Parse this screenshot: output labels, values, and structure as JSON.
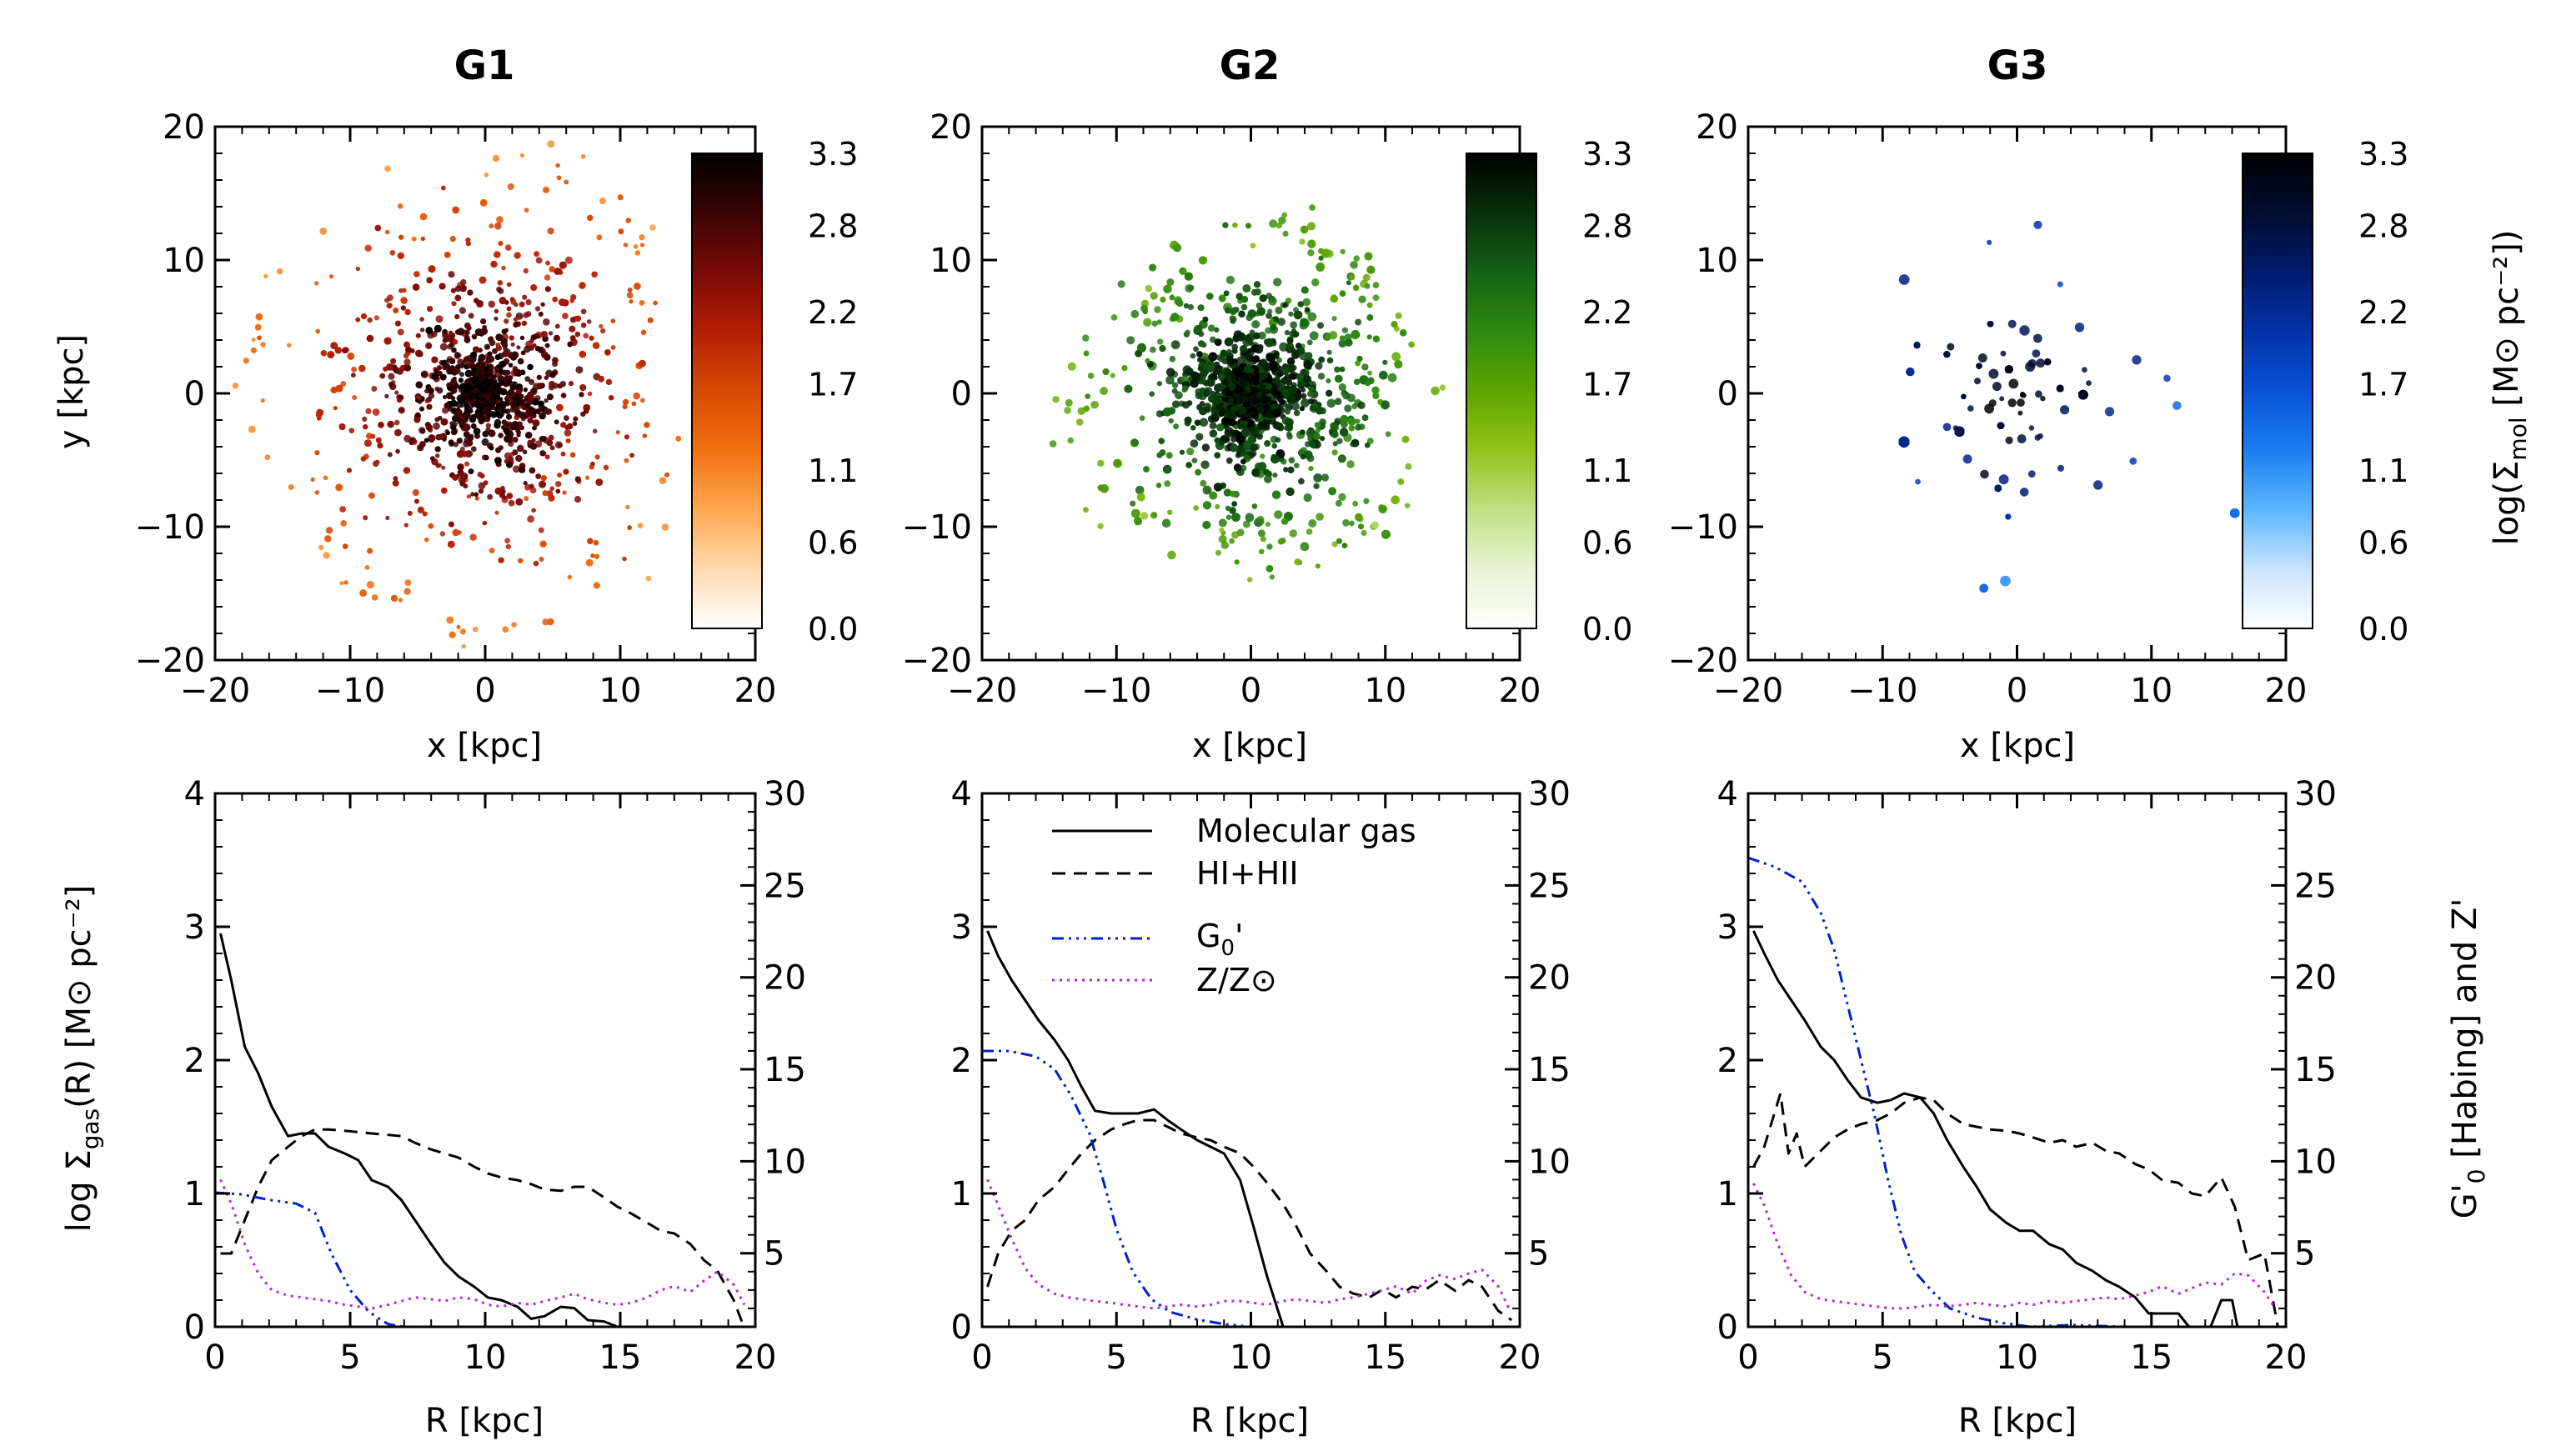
{
  "colors": {
    "molecular": "#000000",
    "hi_hii": "#000000",
    "g0": "#0022c8",
    "z": "#b02cd0",
    "cb_G1": [
      "#ffffff",
      "#ffd9ae",
      "#ffa850",
      "#f27010",
      "#d84a04",
      "#b41e06",
      "#7a0a08",
      "#3a0404",
      "#000000"
    ],
    "cb_G2": [
      "#ffffff",
      "#e9f3d2",
      "#c2df84",
      "#93c21a",
      "#5ea500",
      "#2e8a10",
      "#166014",
      "#08300a",
      "#000000"
    ],
    "cb_G3": [
      "#ffffff",
      "#c8e4ff",
      "#5cb6ff",
      "#1a7ef0",
      "#0a52d8",
      "#0432a8",
      "#021b6c",
      "#000d30",
      "#000000"
    ]
  },
  "chart_data": [
    {
      "type": "scatter",
      "panel": "G1",
      "title": "G1",
      "xlabel": "x [kpc]",
      "ylabel": "y [kpc]",
      "xlim": [
        -20,
        20
      ],
      "ylim": [
        -20,
        20
      ],
      "xticks": [
        "−20",
        "−10",
        "0",
        "10",
        "20"
      ],
      "yticks": [
        "−20",
        "−10",
        "0",
        "10",
        "20"
      ],
      "colorbar": {
        "range": [
          0.0,
          3.3
        ],
        "ticks": [
          "0.0",
          "0.6",
          "1.1",
          "1.7",
          "2.2",
          "2.8",
          "3.3"
        ]
      }
    },
    {
      "type": "scatter",
      "panel": "G2",
      "title": "G2",
      "xlabel": "x [kpc]",
      "ylabel": "",
      "xlim": [
        -20,
        20
      ],
      "ylim": [
        -20,
        20
      ],
      "xticks": [
        "−20",
        "−10",
        "0",
        "10",
        "20"
      ],
      "yticks": [
        "−20",
        "−10",
        "0",
        "10",
        "20"
      ],
      "colorbar": {
        "range": [
          0.0,
          3.3
        ],
        "ticks": [
          "0.0",
          "0.6",
          "1.1",
          "1.7",
          "2.2",
          "2.8",
          "3.3"
        ]
      }
    },
    {
      "type": "scatter",
      "panel": "G3",
      "title": "G3",
      "xlabel": "x [kpc]",
      "ylabel": "",
      "xlim": [
        -20,
        20
      ],
      "ylim": [
        -20,
        20
      ],
      "xticks": [
        "−20",
        "−10",
        "0",
        "10",
        "20"
      ],
      "yticks": [
        "−20",
        "−10",
        "0",
        "10",
        "20"
      ],
      "colorbar": {
        "range": [
          0.0,
          3.3
        ],
        "ticks": [
          "0.0",
          "0.6",
          "1.1",
          "1.7",
          "2.2",
          "2.8",
          "3.3"
        ],
        "label_main": "log(Σ",
        "label_sub": "mol",
        "label_tail": " [M⊙ pc⁻²])"
      }
    },
    {
      "type": "line",
      "panel": "G1",
      "xlabel": "R [kpc]",
      "xlim": [
        0,
        20
      ],
      "ylim": [
        0,
        4
      ],
      "y2lim": [
        1,
        30
      ],
      "xticks": [
        "0",
        "5",
        "10",
        "15",
        "20"
      ],
      "yticks": [
        "0",
        "1",
        "2",
        "3",
        "4"
      ],
      "y2ticks": [
        "5",
        "10",
        "15",
        "20",
        "25",
        "30"
      ],
      "ylabel_main": "log Σ",
      "ylabel_sub": "gas",
      "ylabel_tail": "(R) [M⊙ pc⁻²]",
      "series": [
        {
          "name": "Molecular gas",
          "axis": "left",
          "x": [
            0.2,
            0.6,
            1.1,
            1.6,
            2.1,
            2.7,
            3.2,
            3.7,
            4.2,
            4.8,
            5.3,
            5.8,
            6.4,
            6.9,
            7.4,
            8.0,
            8.5,
            9.0,
            9.6,
            10.1,
            10.6,
            11.2,
            11.7,
            12.2,
            12.8,
            13.3,
            13.8,
            14.4,
            14.9
          ],
          "y": [
            2.95,
            2.6,
            2.1,
            1.9,
            1.65,
            1.43,
            1.45,
            1.45,
            1.35,
            1.3,
            1.25,
            1.1,
            1.05,
            0.95,
            0.8,
            0.62,
            0.48,
            0.38,
            0.3,
            0.22,
            0.2,
            0.15,
            0.06,
            0.08,
            0.15,
            0.14,
            0.05,
            0.04,
            0.0
          ]
        },
        {
          "name": "HI+HII",
          "axis": "left",
          "x": [
            0.2,
            0.6,
            1.1,
            1.6,
            2.1,
            2.7,
            3.2,
            3.7,
            4.2,
            4.8,
            5.3,
            5.8,
            6.4,
            6.9,
            7.4,
            8.0,
            8.5,
            9.0,
            9.6,
            10.1,
            10.6,
            11.2,
            11.7,
            12.2,
            12.8,
            13.3,
            13.8,
            14.4,
            14.9,
            15.4,
            16.0,
            16.5,
            17.0,
            17.6,
            18.1,
            18.6,
            19.2,
            19.5
          ],
          "y": [
            0.55,
            0.55,
            0.8,
            1.05,
            1.25,
            1.35,
            1.43,
            1.48,
            1.48,
            1.47,
            1.46,
            1.45,
            1.44,
            1.43,
            1.38,
            1.33,
            1.3,
            1.27,
            1.2,
            1.15,
            1.12,
            1.1,
            1.07,
            1.03,
            1.02,
            1.05,
            1.05,
            0.97,
            0.9,
            0.85,
            0.78,
            0.72,
            0.7,
            0.62,
            0.5,
            0.42,
            0.2,
            0.04
          ]
        },
        {
          "name": "G₀'",
          "axis": "right",
          "x": [
            0,
            1,
            2,
            3,
            3.7,
            4.3,
            5,
            5.7,
            6.4,
            7.0
          ],
          "y": [
            8.3,
            8.2,
            7.9,
            7.7,
            7.2,
            5.0,
            3.0,
            1.8,
            1.15,
            1.0
          ]
        },
        {
          "name": "Z/Z⊙",
          "axis": "right",
          "x": [
            0.2,
            0.6,
            1.1,
            1.6,
            2.1,
            2.7,
            3.2,
            3.7,
            4.2,
            4.8,
            5.3,
            5.8,
            6.4,
            6.9,
            7.4,
            8.0,
            8.5,
            9.0,
            9.6,
            10.1,
            10.6,
            11.2,
            11.7,
            12.2,
            12.8,
            13.3,
            13.8,
            14.4,
            14.9,
            15.4,
            16.0,
            16.5,
            17.0,
            17.6,
            18.1,
            18.6,
            19.2,
            19.6
          ],
          "y": [
            9.0,
            7.7,
            5.5,
            3.9,
            3.0,
            2.7,
            2.6,
            2.5,
            2.4,
            2.2,
            2.1,
            2.0,
            2.2,
            2.4,
            2.6,
            2.5,
            2.4,
            2.6,
            2.5,
            2.2,
            2.1,
            2.3,
            2.2,
            2.4,
            2.6,
            2.8,
            2.5,
            2.3,
            2.2,
            2.3,
            2.6,
            3.0,
            3.2,
            2.9,
            3.5,
            4.0,
            3.3,
            2.2
          ]
        }
      ]
    },
    {
      "type": "line",
      "panel": "G2",
      "xlabel": "R [kpc]",
      "xlim": [
        0,
        20
      ],
      "ylim": [
        0,
        4
      ],
      "y2lim": [
        1,
        30
      ],
      "xticks": [
        "0",
        "5",
        "10",
        "15",
        "20"
      ],
      "yticks": [
        "0",
        "1",
        "2",
        "3",
        "4"
      ],
      "y2ticks": [
        "5",
        "10",
        "15",
        "20",
        "25",
        "30"
      ],
      "legend": {
        "position": "top-right",
        "labels": [
          "Molecular gas",
          "HI+HII",
          "G",
          "Z/Z⊙"
        ],
        "g0_sub": "0",
        "g0_tail": "'"
      },
      "series": [
        {
          "name": "Molecular gas",
          "axis": "left",
          "x": [
            0.2,
            0.6,
            1.1,
            1.6,
            2.1,
            2.7,
            3.2,
            3.7,
            4.2,
            4.8,
            5.3,
            5.8,
            6.4,
            6.9,
            7.4,
            8.0,
            8.5,
            9.0,
            9.6,
            10.1,
            10.6,
            11.2
          ],
          "y": [
            2.97,
            2.78,
            2.6,
            2.45,
            2.3,
            2.15,
            2.0,
            1.8,
            1.62,
            1.6,
            1.6,
            1.6,
            1.63,
            1.55,
            1.48,
            1.4,
            1.35,
            1.3,
            1.1,
            0.75,
            0.38,
            0.0
          ]
        },
        {
          "name": "HI+HII",
          "axis": "left",
          "x": [
            0.2,
            0.6,
            1.1,
            1.6,
            2.1,
            2.7,
            3.2,
            3.7,
            4.2,
            4.8,
            5.3,
            5.8,
            6.4,
            6.9,
            7.4,
            8.0,
            8.5,
            9.0,
            9.6,
            10.1,
            10.6,
            11.2,
            11.7,
            12.2,
            12.8,
            13.3,
            13.8,
            14.4,
            14.9,
            15.4,
            16.0,
            16.5,
            17.0,
            17.6,
            18.1,
            18.6,
            19.2,
            19.7
          ],
          "y": [
            0.3,
            0.55,
            0.72,
            0.8,
            0.95,
            1.05,
            1.18,
            1.3,
            1.4,
            1.48,
            1.52,
            1.55,
            1.55,
            1.5,
            1.45,
            1.42,
            1.4,
            1.35,
            1.3,
            1.2,
            1.08,
            0.92,
            0.75,
            0.55,
            0.42,
            0.3,
            0.25,
            0.22,
            0.28,
            0.22,
            0.3,
            0.28,
            0.35,
            0.27,
            0.35,
            0.3,
            0.12,
            0.05
          ]
        },
        {
          "name": "G₀'",
          "axis": "right",
          "x": [
            0,
            1,
            2,
            2.7,
            3.3,
            4,
            4.5,
            5,
            5.6,
            6.3,
            7.0,
            8.0,
            9.0,
            10.0
          ],
          "y": [
            16.0,
            16.0,
            15.7,
            15.0,
            13.6,
            11.5,
            9.0,
            6.3,
            4.0,
            2.5,
            1.8,
            1.4,
            1.15,
            1.0
          ]
        },
        {
          "name": "Z/Z⊙",
          "axis": "right",
          "x": [
            0.2,
            0.6,
            1.1,
            1.6,
            2.1,
            2.7,
            3.2,
            3.7,
            4.2,
            4.8,
            5.3,
            5.8,
            6.4,
            6.9,
            7.4,
            8.0,
            8.5,
            9.0,
            9.6,
            10.1,
            10.6,
            11.2,
            11.7,
            12.2,
            12.8,
            13.3,
            13.8,
            14.4,
            14.9,
            15.4,
            16.0,
            16.5,
            17.0,
            17.6,
            18.1,
            18.6,
            19.2,
            19.6
          ],
          "y": [
            9.0,
            7.6,
            5.8,
            4.2,
            3.3,
            2.8,
            2.6,
            2.5,
            2.4,
            2.3,
            2.2,
            2.1,
            2.0,
            2.1,
            2.2,
            2.1,
            2.2,
            2.4,
            2.4,
            2.3,
            2.2,
            2.4,
            2.5,
            2.4,
            2.3,
            2.5,
            2.6,
            2.8,
            3.0,
            3.2,
            2.8,
            3.5,
            3.8,
            3.6,
            3.9,
            4.1,
            3.2,
            2.0
          ]
        }
      ]
    },
    {
      "type": "line",
      "panel": "G3",
      "xlabel": "R [kpc]",
      "xlim": [
        0,
        20
      ],
      "ylim": [
        0,
        4
      ],
      "y2lim": [
        1,
        30
      ],
      "xticks": [
        "0",
        "5",
        "10",
        "15",
        "20"
      ],
      "yticks": [
        "0",
        "1",
        "2",
        "3",
        "4"
      ],
      "y2ticks": [
        "5",
        "10",
        "15",
        "20",
        "25",
        "30"
      ],
      "y2label_main": "G'",
      "y2label_sub": "0",
      "y2label_tail": " [Habing] and Z'",
      "series": [
        {
          "name": "Molecular gas",
          "axis": "left",
          "x": [
            0.2,
            0.6,
            1.1,
            1.6,
            2.1,
            2.7,
            3.2,
            3.7,
            4.2,
            4.8,
            5.3,
            5.8,
            6.4,
            6.9,
            7.4,
            8.0,
            8.5,
            9.0,
            9.6,
            10.1,
            10.6,
            11.2,
            11.7,
            12.2,
            12.8,
            13.3,
            13.8,
            14.4,
            14.9,
            15.4,
            16.0,
            16.4,
            16.8,
            17.2,
            17.6,
            18.0,
            18.2
          ],
          "y": [
            2.97,
            2.8,
            2.6,
            2.45,
            2.3,
            2.1,
            2.0,
            1.85,
            1.72,
            1.68,
            1.7,
            1.75,
            1.72,
            1.6,
            1.4,
            1.2,
            1.05,
            0.88,
            0.78,
            0.72,
            0.72,
            0.62,
            0.58,
            0.48,
            0.42,
            0.35,
            0.3,
            0.22,
            0.1,
            0.1,
            0.1,
            0.0,
            0.0,
            0.0,
            0.2,
            0.2,
            0.0
          ]
        },
        {
          "name": "HI+HII",
          "axis": "left",
          "x": [
            0.2,
            0.6,
            0.9,
            1.2,
            1.5,
            1.8,
            2.1,
            2.7,
            3.2,
            3.7,
            4.2,
            4.8,
            5.3,
            5.8,
            6.4,
            6.9,
            7.4,
            8.0,
            8.5,
            9.0,
            9.6,
            10.1,
            10.6,
            11.2,
            11.7,
            12.2,
            12.8,
            13.3,
            13.8,
            14.4,
            14.9,
            15.4,
            16.0,
            16.5,
            17.0,
            17.6,
            18.1,
            18.6,
            19.2,
            19.7
          ],
          "y": [
            1.2,
            1.35,
            1.55,
            1.75,
            1.3,
            1.45,
            1.2,
            1.32,
            1.42,
            1.48,
            1.52,
            1.55,
            1.6,
            1.68,
            1.72,
            1.7,
            1.6,
            1.52,
            1.5,
            1.48,
            1.47,
            1.45,
            1.42,
            1.38,
            1.4,
            1.35,
            1.38,
            1.32,
            1.3,
            1.22,
            1.18,
            1.1,
            1.08,
            1.0,
            0.98,
            1.12,
            0.9,
            0.5,
            0.55,
            0.0
          ]
        },
        {
          "name": "G₀'",
          "axis": "right",
          "x": [
            0,
            1,
            2,
            2.7,
            3.2,
            3.7,
            4.2,
            4.7,
            5.2,
            5.7,
            6.2,
            6.8,
            7.5,
            8.5,
            9.5,
            10.5,
            12.0,
            14.0,
            16.0,
            18.0
          ],
          "y": [
            26.5,
            26.0,
            25.2,
            23.5,
            21.5,
            18.5,
            15.5,
            12.5,
            9.0,
            6.0,
            4.0,
            3.0,
            2.0,
            1.5,
            1.2,
            1.0,
            1.1,
            1.0,
            1.0,
            1.0
          ]
        },
        {
          "name": "Z/Z⊙",
          "axis": "right",
          "x": [
            0.2,
            0.6,
            1.1,
            1.6,
            2.1,
            2.7,
            3.2,
            3.7,
            4.2,
            4.8,
            5.3,
            5.8,
            6.4,
            6.9,
            7.4,
            8.0,
            8.5,
            9.0,
            9.6,
            10.1,
            10.6,
            11.2,
            11.7,
            12.2,
            12.8,
            13.3,
            13.8,
            14.4,
            14.9,
            15.4,
            16.0,
            16.5,
            17.0,
            17.6,
            18.1,
            18.6,
            19.2,
            19.6
          ],
          "y": [
            8.8,
            7.6,
            5.5,
            3.8,
            2.9,
            2.5,
            2.4,
            2.3,
            2.2,
            2.1,
            2.0,
            2.0,
            2.1,
            2.2,
            2.1,
            2.2,
            2.3,
            2.2,
            2.1,
            2.3,
            2.2,
            2.4,
            2.3,
            2.4,
            2.5,
            2.6,
            2.5,
            2.7,
            2.9,
            3.2,
            2.8,
            3.1,
            3.4,
            3.3,
            3.9,
            3.8,
            2.9,
            2.0
          ]
        }
      ]
    }
  ]
}
